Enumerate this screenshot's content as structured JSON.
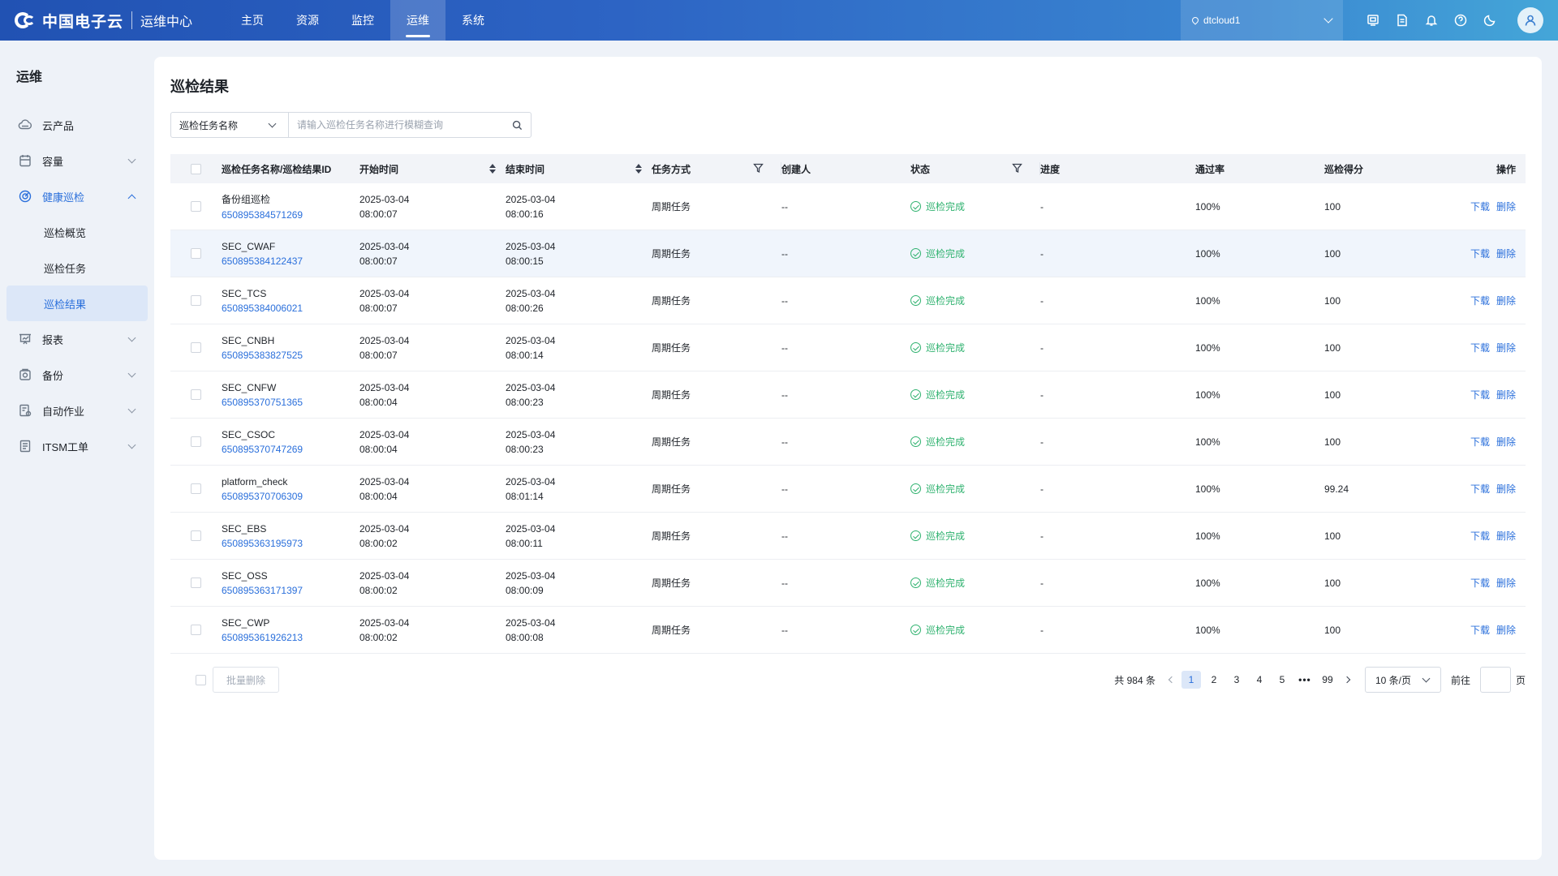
{
  "header": {
    "brand": "中国电子云",
    "subtitle": "运维中心",
    "nav": [
      "主页",
      "资源",
      "监控",
      "运维",
      "系统"
    ],
    "active_nav": "运维",
    "region": "dtcloud1"
  },
  "sidebar": {
    "title": "运维",
    "items": [
      {
        "label": "云产品",
        "icon": "cloud-icon"
      },
      {
        "label": "容量",
        "icon": "capacity-icon"
      },
      {
        "label": "健康巡检",
        "icon": "health-check-icon",
        "children": [
          "巡检概览",
          "巡检任务",
          "巡检结果"
        ],
        "active_child": "巡检结果"
      },
      {
        "label": "报表",
        "icon": "report-icon"
      },
      {
        "label": "备份",
        "icon": "backup-icon"
      },
      {
        "label": "自动作业",
        "icon": "automation-icon"
      },
      {
        "label": "ITSM工单",
        "icon": "ticket-icon"
      }
    ]
  },
  "main": {
    "title": "巡检结果",
    "search": {
      "field": "巡检任务名称",
      "placeholder": "请输入巡检任务名称进行模糊查询"
    },
    "columns": [
      "巡检任务名称/巡检结果ID",
      "开始时间",
      "结束时间",
      "任务方式",
      "创建人",
      "状态",
      "进度",
      "通过率",
      "巡检得分",
      "操作"
    ],
    "rows": [
      {
        "name": "备份组巡检",
        "id": "650895384571269",
        "start_date": "2025-03-04",
        "start_time": "08:00:07",
        "end_date": "2025-03-04",
        "end_time": "08:00:16",
        "mode": "周期任务",
        "creator": "--",
        "status": "巡检完成",
        "progress": "-",
        "rate": "100%",
        "score": "100"
      },
      {
        "name": "SEC_CWAF",
        "id": "650895384122437",
        "start_date": "2025-03-04",
        "start_time": "08:00:07",
        "end_date": "2025-03-04",
        "end_time": "08:00:15",
        "mode": "周期任务",
        "creator": "--",
        "status": "巡检完成",
        "progress": "-",
        "rate": "100%",
        "score": "100"
      },
      {
        "name": "SEC_TCS",
        "id": "650895384006021",
        "start_date": "2025-03-04",
        "start_time": "08:00:07",
        "end_date": "2025-03-04",
        "end_time": "08:00:26",
        "mode": "周期任务",
        "creator": "--",
        "status": "巡检完成",
        "progress": "-",
        "rate": "100%",
        "score": "100"
      },
      {
        "name": "SEC_CNBH",
        "id": "650895383827525",
        "start_date": "2025-03-04",
        "start_time": "08:00:07",
        "end_date": "2025-03-04",
        "end_time": "08:00:14",
        "mode": "周期任务",
        "creator": "--",
        "status": "巡检完成",
        "progress": "-",
        "rate": "100%",
        "score": "100"
      },
      {
        "name": "SEC_CNFW",
        "id": "650895370751365",
        "start_date": "2025-03-04",
        "start_time": "08:00:04",
        "end_date": "2025-03-04",
        "end_time": "08:00:23",
        "mode": "周期任务",
        "creator": "--",
        "status": "巡检完成",
        "progress": "-",
        "rate": "100%",
        "score": "100"
      },
      {
        "name": "SEC_CSOC",
        "id": "650895370747269",
        "start_date": "2025-03-04",
        "start_time": "08:00:04",
        "end_date": "2025-03-04",
        "end_time": "08:00:23",
        "mode": "周期任务",
        "creator": "--",
        "status": "巡检完成",
        "progress": "-",
        "rate": "100%",
        "score": "100"
      },
      {
        "name": "platform_check",
        "id": "650895370706309",
        "start_date": "2025-03-04",
        "start_time": "08:00:04",
        "end_date": "2025-03-04",
        "end_time": "08:01:14",
        "mode": "周期任务",
        "creator": "--",
        "status": "巡检完成",
        "progress": "-",
        "rate": "100%",
        "score": "99.24"
      },
      {
        "name": "SEC_EBS",
        "id": "650895363195973",
        "start_date": "2025-03-04",
        "start_time": "08:00:02",
        "end_date": "2025-03-04",
        "end_time": "08:00:11",
        "mode": "周期任务",
        "creator": "--",
        "status": "巡检完成",
        "progress": "-",
        "rate": "100%",
        "score": "100"
      },
      {
        "name": "SEC_OSS",
        "id": "650895363171397",
        "start_date": "2025-03-04",
        "start_time": "08:00:02",
        "end_date": "2025-03-04",
        "end_time": "08:00:09",
        "mode": "周期任务",
        "creator": "--",
        "status": "巡检完成",
        "progress": "-",
        "rate": "100%",
        "score": "100"
      },
      {
        "name": "SEC_CWP",
        "id": "650895361926213",
        "start_date": "2025-03-04",
        "start_time": "08:00:02",
        "end_date": "2025-03-04",
        "end_time": "08:00:08",
        "mode": "周期任务",
        "creator": "--",
        "status": "巡检完成",
        "progress": "-",
        "rate": "100%",
        "score": "100"
      }
    ],
    "row_actions": {
      "download": "下载",
      "delete": "删除"
    },
    "hover_row": 1
  },
  "footer": {
    "batch_delete": "批量删除",
    "total": "共 984 条",
    "pages": [
      "1",
      "2",
      "3",
      "4",
      "5",
      "•••",
      "99"
    ],
    "active_page": "1",
    "page_size": "10 条/页",
    "goto_label": "前往",
    "goto_value": "",
    "page_unit": "页"
  },
  "colors": {
    "primary": "#2a6fdb",
    "success": "#2fb26f",
    "header_gradient_start": "#2152b3",
    "header_gradient_end": "#44a6d8"
  }
}
